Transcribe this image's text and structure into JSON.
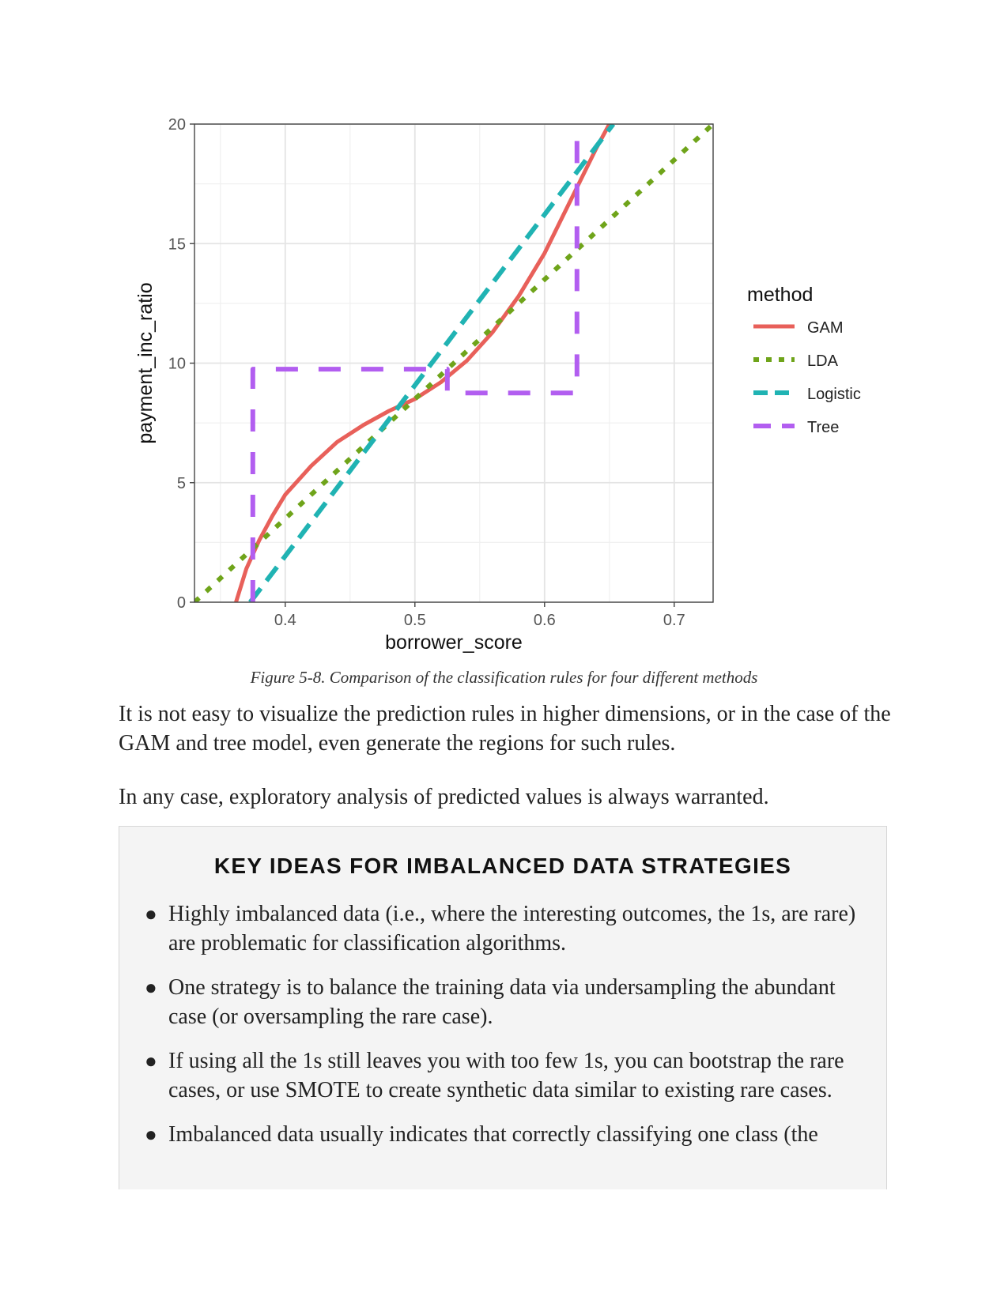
{
  "chart_data": {
    "type": "line",
    "xlabel": "borrower_score",
    "ylabel": "payment_inc_ratio",
    "xlim": [
      0.33,
      0.73
    ],
    "ylim": [
      0,
      20
    ],
    "x_ticks": [
      0.4,
      0.5,
      0.6,
      0.7
    ],
    "x_tick_labels": [
      "0.4",
      "0.5",
      "0.6",
      "0.7"
    ],
    "y_ticks": [
      0,
      5,
      10,
      15,
      20
    ],
    "y_tick_labels": [
      "0",
      "5",
      "10",
      "15",
      "20"
    ],
    "grid": true,
    "legend_title": "method",
    "legend_position": "right",
    "series": [
      {
        "name": "GAM",
        "color": "#e8605a",
        "dash": "solid",
        "x": [
          0.362,
          0.37,
          0.38,
          0.39,
          0.4,
          0.42,
          0.44,
          0.46,
          0.48,
          0.5,
          0.52,
          0.54,
          0.56,
          0.58,
          0.6,
          0.62,
          0.64,
          0.65
        ],
        "y": [
          0.0,
          1.4,
          2.6,
          3.6,
          4.5,
          5.7,
          6.7,
          7.4,
          8.0,
          8.5,
          9.2,
          10.1,
          11.3,
          12.8,
          14.6,
          16.8,
          19.0,
          20.0
        ]
      },
      {
        "name": "LDA",
        "color": "#6fa41a",
        "dash": "dotted",
        "x": [
          0.33,
          0.73
        ],
        "y": [
          0.0,
          20.0
        ]
      },
      {
        "name": "Logistic",
        "color": "#20b3b3",
        "dash": "dashed",
        "x": [
          0.373,
          0.653
        ],
        "y": [
          0.0,
          20.0
        ]
      },
      {
        "name": "Tree",
        "color": "#b25ef0",
        "dash": "longdash",
        "x": [
          0.375,
          0.375,
          0.525,
          0.525,
          0.625,
          0.625
        ],
        "y": [
          0.0,
          9.75,
          9.75,
          8.75,
          8.75,
          20.0
        ]
      }
    ]
  },
  "caption": "Figure 5-8. Comparison of the classification rules for four different methods",
  "paragraphs": [
    "It is not easy to visualize the prediction rules in higher dimensions, or in the case of the GAM and tree model, even generate the regions for such rules.",
    "In any case, exploratory analysis of predicted values is always warranted."
  ],
  "callout": {
    "title": "KEY IDEAS FOR IMBALANCED DATA STRATEGIES",
    "items": [
      "Highly imbalanced data (i.e., where the interesting outcomes, the 1s, are rare) are problematic for classification algorithms.",
      "One strategy is to balance the training data via undersampling the abundant case (or oversampling the rare case).",
      "If using all the 1s still leaves you with too few 1s, you can bootstrap the rare cases, or use SMOTE to create synthetic data similar to existing rare cases.",
      "Imbalanced data usually indicates that correctly classifying one class (the"
    ]
  }
}
